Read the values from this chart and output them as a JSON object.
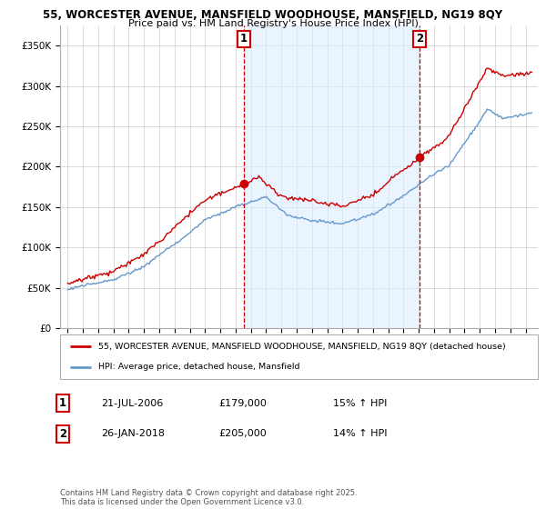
{
  "title_line1": "55, WORCESTER AVENUE, MANSFIELD WOODHOUSE, MANSFIELD, NG19 8QY",
  "title_line2": "Price paid vs. HM Land Registry's House Price Index (HPI)",
  "legend_label1": "55, WORCESTER AVENUE, MANSFIELD WOODHOUSE, MANSFIELD, NG19 8QY (detached house)",
  "legend_label2": "HPI: Average price, detached house, Mansfield",
  "marker1_label": "1",
  "marker1_date": "21-JUL-2006",
  "marker1_price": "£179,000",
  "marker1_hpi": "15% ↑ HPI",
  "marker1_x": 2006.54,
  "marker1_y": 179000,
  "marker2_label": "2",
  "marker2_date": "26-JAN-2018",
  "marker2_price": "£205,000",
  "marker2_hpi": "14% ↑ HPI",
  "marker2_x": 2018.07,
  "marker2_y": 205000,
  "color_property": "#cc0000",
  "color_hpi": "#6699cc",
  "color_marker_border": "#cc0000",
  "color_vline": "#cc0000",
  "color_shade": "#ddeeff",
  "background_color": "#ffffff",
  "grid_color": "#cccccc",
  "ylim": [
    0,
    375000
  ],
  "yticks": [
    0,
    50000,
    100000,
    150000,
    200000,
    250000,
    300000,
    350000
  ],
  "xlim_start": 1994.5,
  "xlim_end": 2025.8,
  "footer": "Contains HM Land Registry data © Crown copyright and database right 2025.\nThis data is licensed under the Open Government Licence v3.0."
}
